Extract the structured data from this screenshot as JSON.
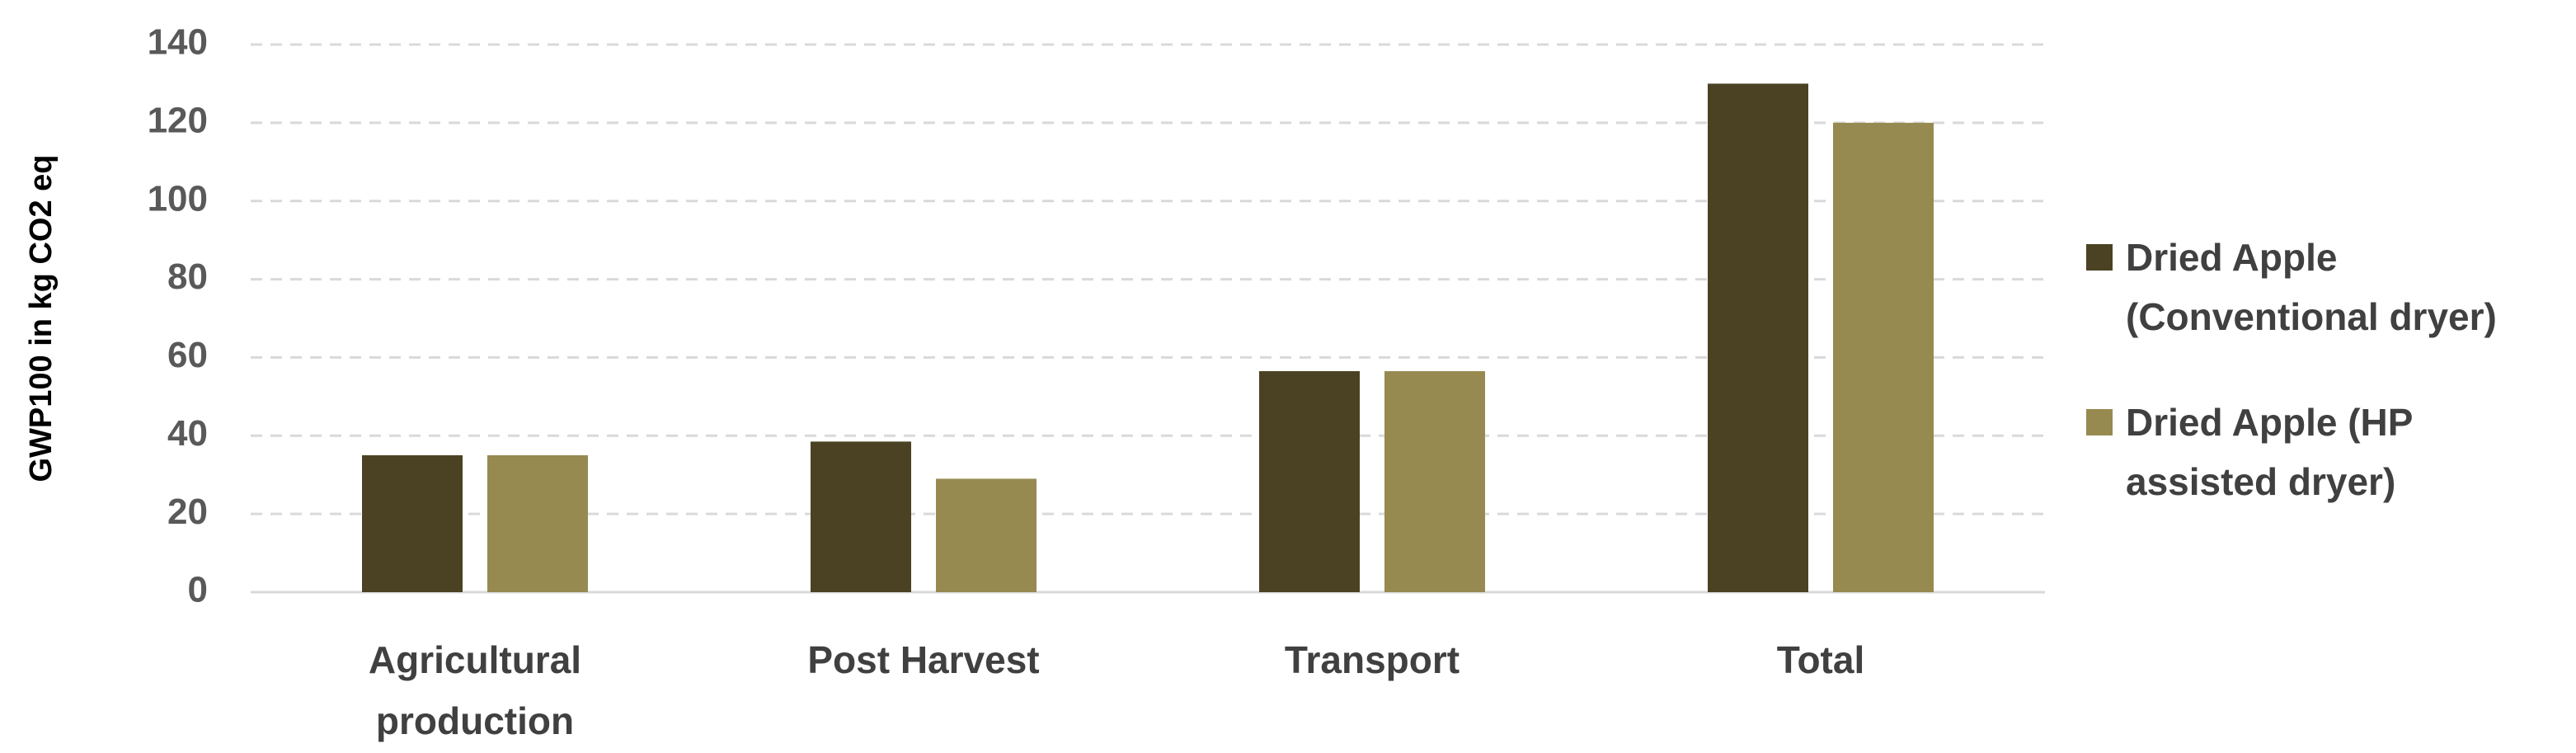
{
  "chart_data": {
    "type": "bar",
    "y_label": "GWP100 in kg CO2 eq",
    "categories": [
      "Agricultural production",
      "Post Harvest",
      "Transport",
      "Total"
    ],
    "series": [
      {
        "name": "Dried Apple (Conventional dryer)",
        "color": "#4b4224",
        "values": [
          35,
          38.5,
          56.5,
          130
        ]
      },
      {
        "name": "Dried Apple (HP assisted dryer)",
        "color": "#978a50",
        "values": [
          35,
          29,
          56.5,
          120
        ]
      }
    ],
    "ylim": [
      0,
      140
    ],
    "yticks": [
      0,
      20,
      40,
      60,
      80,
      100,
      120,
      140
    ],
    "grid": true,
    "legend": "right"
  }
}
